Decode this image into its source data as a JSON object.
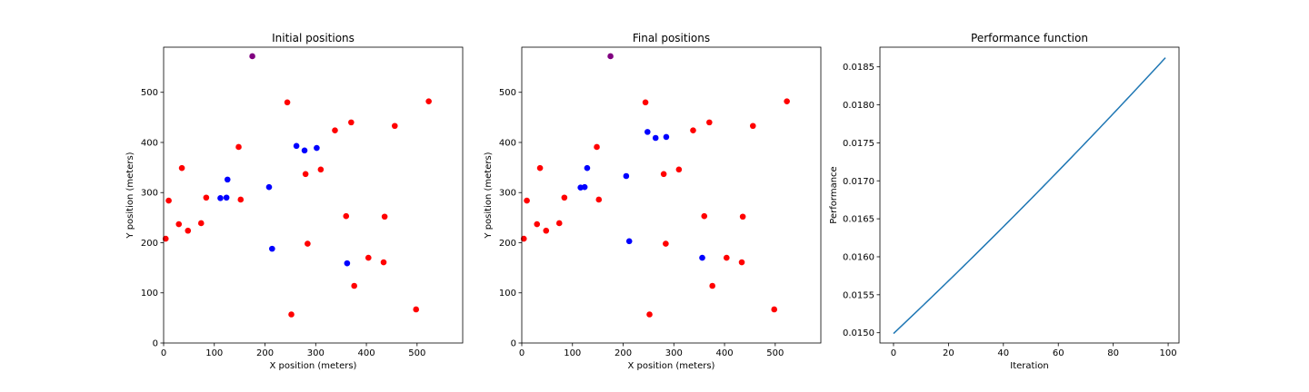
{
  "chart_data": [
    {
      "type": "scatter",
      "title": "Initial positions",
      "xlabel": "X position (meters)",
      "ylabel": "Y position (meters)",
      "xlim": [
        0,
        590
      ],
      "ylim": [
        0,
        590
      ],
      "xticks": [
        0,
        100,
        200,
        300,
        400,
        500
      ],
      "yticks": [
        0,
        100,
        200,
        300,
        400,
        500
      ],
      "series": [
        {
          "color": "#ff0000",
          "points": [
            [
              4,
              208
            ],
            [
              10,
              284
            ],
            [
              30,
              237
            ],
            [
              36,
              349
            ],
            [
              48,
              224
            ],
            [
              74,
              239
            ],
            [
              84,
              290
            ],
            [
              148,
              391
            ],
            [
              152,
              286
            ],
            [
              244,
              480
            ],
            [
              252,
              57
            ],
            [
              280,
              337
            ],
            [
              284,
              198
            ],
            [
              310,
              346
            ],
            [
              338,
              424
            ],
            [
              360,
              253
            ],
            [
              370,
              440
            ],
            [
              376,
              114
            ],
            [
              404,
              170
            ],
            [
              434,
              161
            ],
            [
              436,
              252
            ],
            [
              456,
              433
            ],
            [
              498,
              67
            ],
            [
              523,
              482
            ]
          ]
        },
        {
          "color": "#0000ff",
          "points": [
            [
              112,
              289
            ],
            [
              124,
              290
            ],
            [
              126,
              326
            ],
            [
              208,
              311
            ],
            [
              214,
              188
            ],
            [
              262,
              393
            ],
            [
              278,
              384
            ],
            [
              302,
              389
            ],
            [
              362,
              159
            ]
          ]
        },
        {
          "color": "#800080",
          "points": [
            [
              175,
              572
            ]
          ]
        }
      ]
    },
    {
      "type": "scatter",
      "title": "Final positions",
      "xlabel": "X position (meters)",
      "ylabel": "Y position (meters)",
      "xlim": [
        0,
        590
      ],
      "ylim": [
        0,
        590
      ],
      "xticks": [
        0,
        100,
        200,
        300,
        400,
        500
      ],
      "yticks": [
        0,
        100,
        200,
        300,
        400,
        500
      ],
      "series": [
        {
          "color": "#ff0000",
          "points": [
            [
              4,
              208
            ],
            [
              10,
              284
            ],
            [
              30,
              237
            ],
            [
              36,
              349
            ],
            [
              48,
              224
            ],
            [
              74,
              239
            ],
            [
              84,
              290
            ],
            [
              148,
              391
            ],
            [
              152,
              286
            ],
            [
              244,
              480
            ],
            [
              252,
              57
            ],
            [
              280,
              337
            ],
            [
              284,
              198
            ],
            [
              310,
              346
            ],
            [
              338,
              424
            ],
            [
              360,
              253
            ],
            [
              370,
              440
            ],
            [
              376,
              114
            ],
            [
              404,
              170
            ],
            [
              434,
              161
            ],
            [
              436,
              252
            ],
            [
              456,
              433
            ],
            [
              498,
              67
            ],
            [
              523,
              482
            ]
          ]
        },
        {
          "color": "#0000ff",
          "points": [
            [
              116,
              310
            ],
            [
              124,
              311
            ],
            [
              129,
              349
            ],
            [
              206,
              333
            ],
            [
              212,
              203
            ],
            [
              248,
              421
            ],
            [
              264,
              409
            ],
            [
              285,
              411
            ],
            [
              356,
              170
            ]
          ]
        },
        {
          "color": "#800080",
          "points": [
            [
              175,
              572
            ]
          ]
        }
      ]
    },
    {
      "type": "line",
      "title": "Performance function",
      "xlabel": "Iteration",
      "ylabel": "Performance",
      "xlim": [
        -4.95,
        103.95
      ],
      "ylim": [
        0.014865,
        0.018759
      ],
      "xticks": [
        0,
        20,
        40,
        60,
        80,
        100
      ],
      "yticks": [
        0.015,
        0.0155,
        0.016,
        0.0165,
        0.017,
        0.0175,
        0.018,
        0.0185
      ],
      "ytick_labels": [
        "0.0150",
        "0.0155",
        "0.0160",
        "0.0165",
        "0.0170",
        "0.0175",
        "0.0180",
        "0.0185"
      ],
      "series": [
        {
          "color": "#1f77b4",
          "x_range": [
            0,
            99
          ],
          "y_start": 0.01499,
          "y_end": 0.01862
        }
      ]
    }
  ]
}
